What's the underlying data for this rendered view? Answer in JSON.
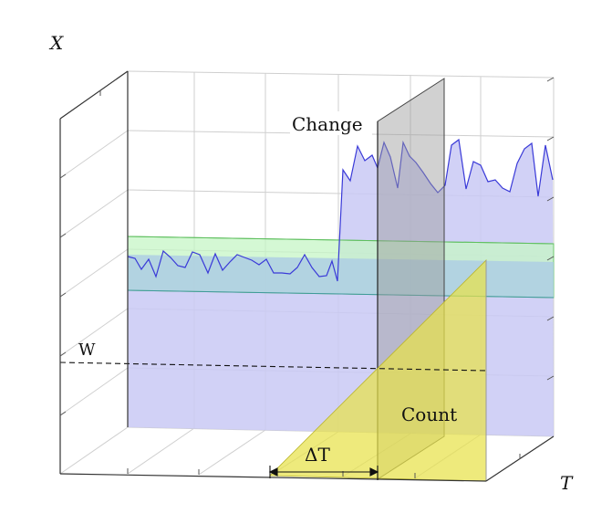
{
  "labels": {
    "x_axis": "X",
    "t_axis": "T",
    "w_level": "W",
    "change": "Change",
    "count": "Count",
    "delta_t": "ΔT"
  },
  "colors": {
    "signal_region": "#c9c9f5",
    "signal_line": "#3a3ad8",
    "band_green": "#c8f7c8",
    "band_blue": "#b8d4ea",
    "change_plane": "#b7b7b7",
    "count_plane": "#e6e14c",
    "grid": "#c8c8c8",
    "frame": "#555555"
  }
}
